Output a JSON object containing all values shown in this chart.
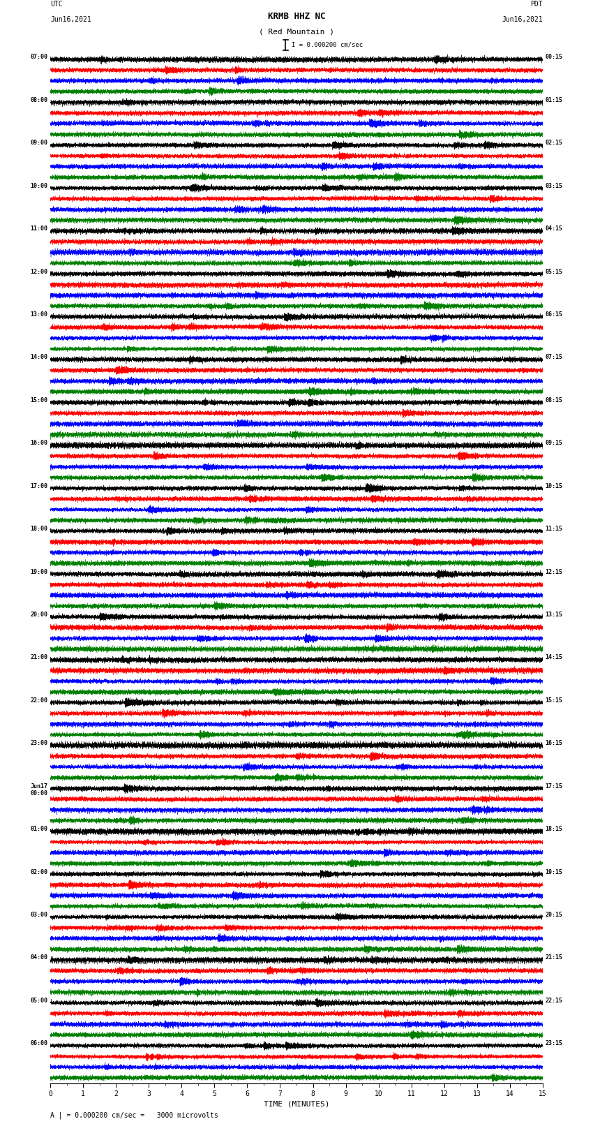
{
  "title_line1": "KRMB HHZ NC",
  "title_line2": "( Red Mountain )",
  "scale_text": "I = 0.000200 cm/sec",
  "left_label": "UTC\nJun16,2021",
  "right_label": "PDT\nJun16,2021",
  "bottom_label": "TIME (MINUTES)",
  "legend_text": "A | = 0.000200 cm/sec =   3000 microvolts",
  "utc_times": [
    "07:00",
    "08:00",
    "09:00",
    "10:00",
    "11:00",
    "12:00",
    "13:00",
    "14:00",
    "15:00",
    "16:00",
    "17:00",
    "18:00",
    "19:00",
    "20:00",
    "21:00",
    "22:00",
    "23:00",
    "Jun17\n00:00",
    "01:00",
    "02:00",
    "03:00",
    "04:00",
    "05:00",
    "06:00"
  ],
  "pdt_times": [
    "00:15",
    "01:15",
    "02:15",
    "03:15",
    "04:15",
    "05:15",
    "06:15",
    "07:15",
    "08:15",
    "09:15",
    "10:15",
    "11:15",
    "12:15",
    "13:15",
    "14:15",
    "15:15",
    "16:15",
    "17:15",
    "18:15",
    "19:15",
    "20:15",
    "21:15",
    "22:15",
    "23:15"
  ],
  "colors": [
    "black",
    "red",
    "blue",
    "green"
  ],
  "n_rows": 24,
  "n_traces_per_row": 4,
  "x_min": 0,
  "x_max": 15,
  "x_ticks": [
    0,
    1,
    2,
    3,
    4,
    5,
    6,
    7,
    8,
    9,
    10,
    11,
    12,
    13,
    14,
    15
  ],
  "background_color": "white",
  "trace_amplitude": 0.42,
  "fig_width": 8.5,
  "fig_height": 16.13,
  "dpi": 100
}
